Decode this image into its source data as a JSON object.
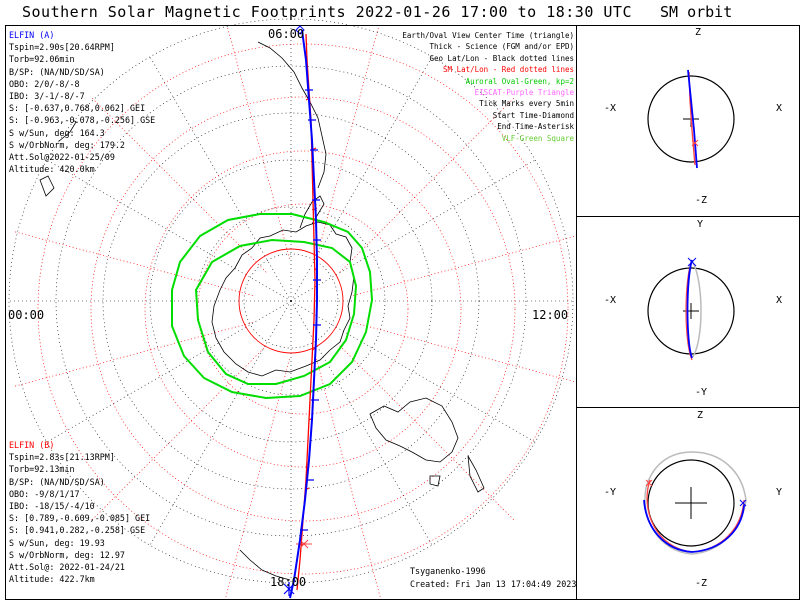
{
  "title": "Southern Solar Magnetic Footprints 2022-01-26 17:00 to 18:30 UTC",
  "orbit_title": "SM orbit",
  "clock_labels": {
    "top": "06:00",
    "left": "00:00",
    "right": "12:00",
    "bottom": "18:00"
  },
  "legend": [
    {
      "text": "Earth/Oval View Center Time (triangle)",
      "color": "#000000"
    },
    {
      "text": "Thick - Science (FGM and/or EPD)",
      "color": "#000000"
    },
    {
      "text": "Geo Lat/Lon - Black dotted lines",
      "color": "#000000"
    },
    {
      "text": "SM Lat/Lon - Red dotted lines",
      "color": "#ff0000"
    },
    {
      "text": "Auroral Oval-Green, kp=2",
      "color": "#00cc00"
    },
    {
      "text": "EISCAT-Purple Triangle",
      "color": "#ff66ff"
    },
    {
      "text": "Tick Marks every 5min",
      "color": "#000000"
    },
    {
      "text": "Start Time-Diamond",
      "color": "#000000"
    },
    {
      "text": "End Time-Asterisk",
      "color": "#000000"
    },
    {
      "text": "VLF-Green Square",
      "color": "#66cc33"
    }
  ],
  "elfin_a": {
    "color": "#0000ff",
    "name": "ELFIN (A)",
    "lines": [
      "Tspin=2.90s[20.64RPM]",
      "Torb=92.06min",
      "B/SP: (NA/ND/SD/SA)",
      "OBO: 2/0/-8/-8",
      "IBO: 3/-1/-8/-7",
      "S: [-0.637,0.768,0.062] GEI",
      "S: [-0.963,-0.078,-0.256] GSE",
      "S w/Sun, deg: 164.3",
      "S w/OrbNorm, deg: 179.2",
      "Att.Sol@2022-01-25/09",
      "Altitude: 420.0km"
    ]
  },
  "elfin_b": {
    "color": "#ff0000",
    "name": "ELFIN (B)",
    "lines": [
      "Tspin=2.83s[21.13RPM]",
      "Torb=92.13min",
      "B/SP: (NA/ND/SD/SA)",
      "OBO: -9/8/1/17",
      "IBO: -18/15/-4/10",
      "S: [0.789,-0.609,-0.085] GEI",
      "S: [0.941,0.282,-0.258] GSE",
      "S w/Sun, deg: 19.93",
      "S w/OrbNorm, deg: 12.97",
      "Att.Sol@: 2022-01-24/21",
      "Altitude: 422.7km"
    ]
  },
  "footer": {
    "model": "Tsyganenko-1996",
    "created": "Created: Fri Jan 13 17:04:49 2023"
  },
  "orbit_panels": [
    {
      "top": "Z",
      "bottom": "-Z",
      "left": "-X",
      "right": "X"
    },
    {
      "top": "Y",
      "bottom": "-Y",
      "left": "-X",
      "right": "X"
    },
    {
      "top": "Z",
      "bottom": "-Z",
      "left": "-Y",
      "right": "Y"
    }
  ]
}
